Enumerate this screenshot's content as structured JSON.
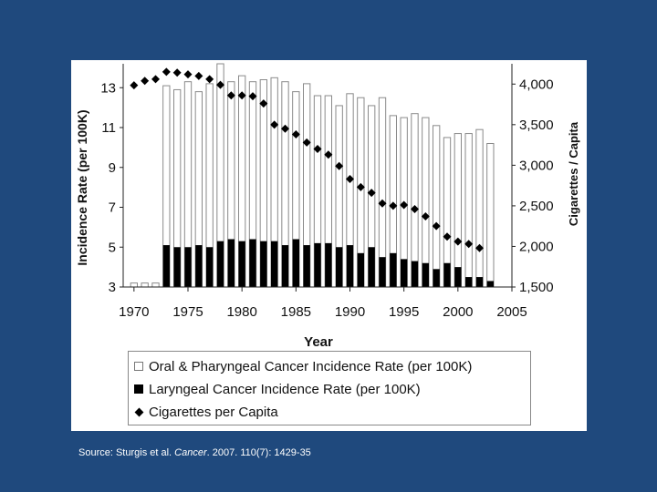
{
  "colors": {
    "background": "#1f497d",
    "figure_bg": "#ffffff",
    "open_bar_edge": "#8a8a8a",
    "black": "#000000"
  },
  "caption": {
    "prefix": "Source: Sturgis et al. ",
    "journal": "Cancer",
    "suffix": ". 2007. 110(7): 1429-35"
  },
  "legend": {
    "items": [
      {
        "label": "Oral & Pharyngeal Cancer Incidence Rate (per 100K)",
        "swatch": "open-bar"
      },
      {
        "label": "Laryngeal Cancer Incidence Rate (per 100K)",
        "swatch": "black-bar"
      },
      {
        "label": "Cigarettes per Capita",
        "swatch": "diamond"
      }
    ]
  },
  "chart_data": {
    "type": "bar",
    "xlabel": "Year",
    "ylabel": "Incidence Rate (per 100K)",
    "y2label": "Cigarettes / Capita",
    "xlim": [
      1969,
      2005
    ],
    "ylim": [
      3,
      14.2
    ],
    "y2lim": [
      1500,
      4250
    ],
    "xticks": [
      1970,
      1975,
      1980,
      1985,
      1990,
      1995,
      2000,
      2005
    ],
    "xtick_labels": [
      "1970",
      "1975",
      "1980",
      "1985",
      "1990",
      "1995",
      "2000",
      "2005"
    ],
    "yticks": [
      3,
      5,
      7,
      9,
      11,
      13
    ],
    "ytick_labels": [
      "3",
      "5",
      "7",
      "9",
      "11",
      "13"
    ],
    "y2ticks": [
      1500,
      2000,
      2500,
      3000,
      3500,
      4000
    ],
    "y2tick_labels": [
      "1,500",
      "2,000",
      "2,500",
      "3,000",
      "3,500",
      "4,000"
    ],
    "grid": false,
    "series": [
      {
        "name": "Oral & Pharyngeal Cancer Incidence Rate (per 100K)",
        "kind": "bar-open",
        "axis": "left",
        "x": [
          1970,
          1971,
          1972,
          1973,
          1974,
          1975,
          1976,
          1977,
          1978,
          1979,
          1980,
          1981,
          1982,
          1983,
          1984,
          1985,
          1986,
          1987,
          1988,
          1989,
          1990,
          1991,
          1992,
          1993,
          1994,
          1995,
          1996,
          1997,
          1998,
          1999,
          2000,
          2001,
          2002,
          2003
        ],
        "values": [
          3.2,
          3.2,
          3.2,
          13.1,
          12.9,
          13.3,
          12.8,
          13.2,
          14.2,
          13.3,
          13.6,
          13.3,
          13.4,
          13.5,
          13.3,
          12.8,
          13.2,
          12.6,
          12.6,
          12.1,
          12.7,
          12.5,
          12.1,
          12.5,
          11.6,
          11.5,
          11.7,
          11.5,
          11.1,
          10.5,
          10.7,
          10.7,
          10.9,
          10.2
        ]
      },
      {
        "name": "Laryngeal Cancer Incidence Rate (per 100K)",
        "kind": "bar-solid",
        "axis": "left",
        "x": [
          1973,
          1974,
          1975,
          1976,
          1977,
          1978,
          1979,
          1980,
          1981,
          1982,
          1983,
          1984,
          1985,
          1986,
          1987,
          1988,
          1989,
          1990,
          1991,
          1992,
          1993,
          1994,
          1995,
          1996,
          1997,
          1998,
          1999,
          2000,
          2001,
          2002,
          2003
        ],
        "values": [
          5.1,
          5.0,
          5.0,
          5.1,
          5.0,
          5.3,
          5.4,
          5.3,
          5.4,
          5.3,
          5.3,
          5.1,
          5.4,
          5.1,
          5.2,
          5.2,
          5.0,
          5.1,
          4.7,
          5.0,
          4.5,
          4.7,
          4.4,
          4.3,
          4.2,
          3.9,
          4.2,
          4.0,
          3.5,
          3.5,
          3.3
        ]
      },
      {
        "name": "Cigarettes per Capita",
        "kind": "diamond",
        "axis": "right",
        "x": [
          1970,
          1971,
          1972,
          1973,
          1974,
          1975,
          1976,
          1977,
          1978,
          1979,
          1980,
          1981,
          1982,
          1983,
          1984,
          1985,
          1986,
          1987,
          1988,
          1989,
          1990,
          1991,
          1992,
          1993,
          1994,
          1995,
          1996,
          1997,
          1998,
          1999,
          2000,
          2001,
          2002
        ],
        "values": [
          3985,
          4040,
          4060,
          4150,
          4140,
          4120,
          4100,
          4060,
          3990,
          3860,
          3860,
          3850,
          3760,
          3500,
          3450,
          3380,
          3280,
          3200,
          3130,
          2990,
          2830,
          2730,
          2660,
          2530,
          2500,
          2510,
          2460,
          2370,
          2250,
          2120,
          2060,
          2030,
          1980
        ]
      }
    ]
  }
}
